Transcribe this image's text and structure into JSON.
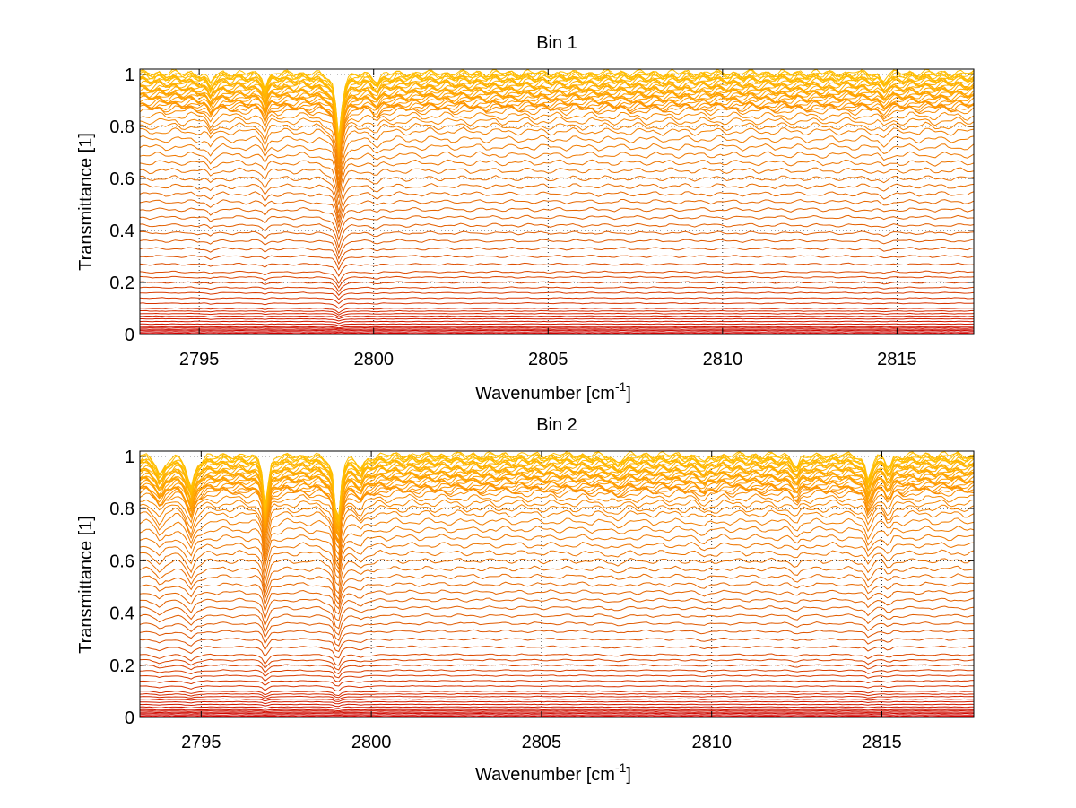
{
  "chart_data": [
    {
      "type": "line",
      "title": "Bin 1",
      "xlabel": "Wavenumber [cm",
      "xlabel_sup": "-1",
      "xlabel_tail": "]",
      "ylabel": "Transmittance [1]",
      "xlim": [
        2793.3,
        2817.2
      ],
      "ylim": [
        0,
        1.02
      ],
      "xticks": [
        2795,
        2800,
        2805,
        2810,
        2815
      ],
      "yticks": [
        0,
        0.2,
        0.4,
        0.6,
        0.8,
        1
      ],
      "ytick_labels": [
        "0",
        "0.2",
        "0.4",
        "0.6",
        "0.8",
        "1"
      ],
      "grid": "dotted",
      "series_count": 70,
      "series_levels": [
        0.005,
        0.01,
        0.015,
        0.02,
        0.025,
        0.03,
        0.04,
        0.05,
        0.06,
        0.07,
        0.08,
        0.09,
        0.1,
        0.12,
        0.14,
        0.16,
        0.18,
        0.2,
        0.22,
        0.24,
        0.27,
        0.3,
        0.33,
        0.36,
        0.39,
        0.42,
        0.45,
        0.48,
        0.51,
        0.54,
        0.57,
        0.6,
        0.63,
        0.66,
        0.69,
        0.72,
        0.75,
        0.78,
        0.8,
        0.82,
        0.84,
        0.86,
        0.87,
        0.875,
        0.88,
        0.885,
        0.89,
        0.9,
        0.905,
        0.91,
        0.915,
        0.92,
        0.925,
        0.93,
        0.935,
        0.94,
        0.945,
        0.95,
        0.955,
        0.96,
        0.965,
        0.97,
        0.975,
        0.98,
        0.985,
        0.99,
        0.993,
        0.996,
        0.998,
        1.0
      ],
      "absorption_lines": [
        {
          "center": 2799.0,
          "depth": 0.25,
          "width": 0.09
        },
        {
          "center": 2796.9,
          "depth": 0.06,
          "width": 0.06
        },
        {
          "center": 2795.3,
          "depth": 0.05,
          "width": 0.07
        },
        {
          "center": 2800.1,
          "depth": 0.03,
          "width": 0.12
        },
        {
          "center": 2814.6,
          "depth": 0.03,
          "width": 0.1
        }
      ],
      "colormap": [
        "#cc0000",
        "#e05a00",
        "#ff9900",
        "#ffc000"
      ]
    },
    {
      "type": "line",
      "title": "Bin 2",
      "xlabel": "Wavenumber [cm",
      "xlabel_sup": "-1",
      "xlabel_tail": "]",
      "ylabel": "Transmittance [1]",
      "xlim": [
        2793.2,
        2817.7
      ],
      "ylim": [
        0,
        1.02
      ],
      "xticks": [
        2795,
        2800,
        2805,
        2810,
        2815
      ],
      "yticks": [
        0,
        0.2,
        0.4,
        0.6,
        0.8,
        1
      ],
      "ytick_labels": [
        "0",
        "0.2",
        "0.4",
        "0.6",
        "0.8",
        "1"
      ],
      "grid": "dotted",
      "series_count": 70,
      "series_levels": [
        0.005,
        0.01,
        0.015,
        0.02,
        0.025,
        0.03,
        0.04,
        0.05,
        0.06,
        0.07,
        0.08,
        0.09,
        0.1,
        0.12,
        0.14,
        0.16,
        0.18,
        0.2,
        0.22,
        0.24,
        0.27,
        0.3,
        0.33,
        0.36,
        0.39,
        0.42,
        0.45,
        0.48,
        0.51,
        0.54,
        0.57,
        0.6,
        0.63,
        0.66,
        0.69,
        0.72,
        0.75,
        0.78,
        0.8,
        0.82,
        0.84,
        0.86,
        0.87,
        0.875,
        0.88,
        0.885,
        0.89,
        0.9,
        0.905,
        0.91,
        0.915,
        0.92,
        0.925,
        0.93,
        0.935,
        0.94,
        0.945,
        0.95,
        0.955,
        0.96,
        0.965,
        0.97,
        0.975,
        0.98,
        0.985,
        0.99,
        0.993,
        0.996,
        0.998,
        1.0
      ],
      "absorption_lines": [
        {
          "center": 2799.0,
          "depth": 0.28,
          "width": 0.09
        },
        {
          "center": 2796.9,
          "depth": 0.22,
          "width": 0.07
        },
        {
          "center": 2794.7,
          "depth": 0.13,
          "width": 0.12
        },
        {
          "center": 2793.8,
          "depth": 0.08,
          "width": 0.12
        },
        {
          "center": 2799.7,
          "depth": 0.05,
          "width": 0.12
        },
        {
          "center": 2814.6,
          "depth": 0.09,
          "width": 0.1
        },
        {
          "center": 2815.2,
          "depth": 0.05,
          "width": 0.08
        },
        {
          "center": 2812.5,
          "depth": 0.04,
          "width": 0.12
        },
        {
          "center": 2807.2,
          "depth": 0.03,
          "width": 0.12
        },
        {
          "center": 2809.8,
          "depth": 0.03,
          "width": 0.12
        }
      ],
      "colormap": [
        "#cc0000",
        "#e05a00",
        "#ff9900",
        "#ffc000"
      ]
    }
  ]
}
